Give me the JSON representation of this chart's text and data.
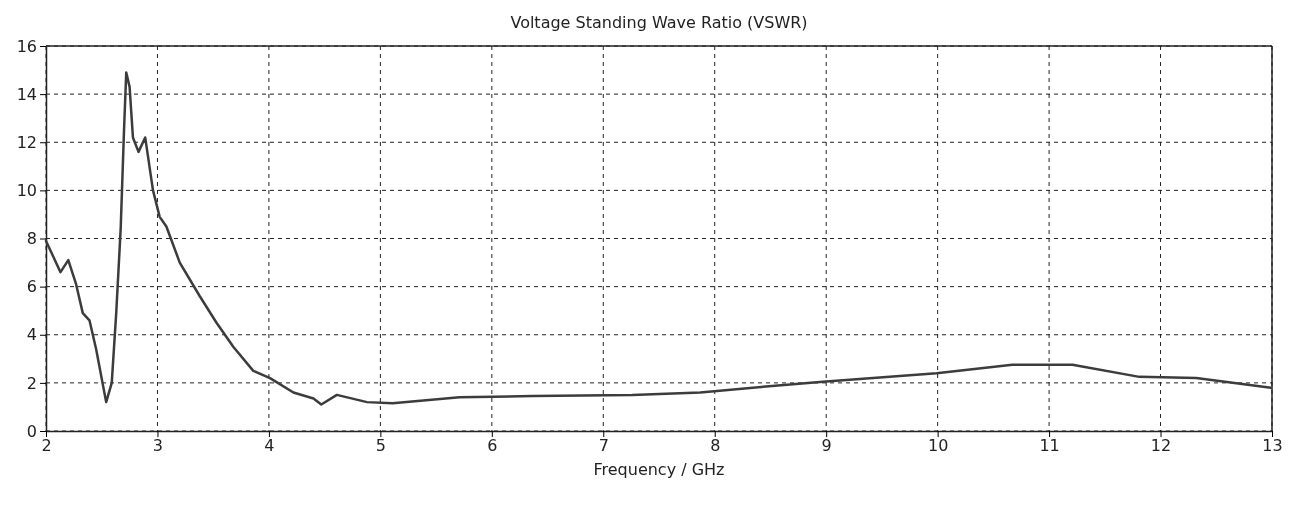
{
  "chart_data": {
    "type": "line",
    "title": "Voltage Standing Wave Ratio (VSWR)",
    "xlabel": "Frequency / GHz",
    "x": [
      2.0,
      2.13,
      2.2,
      2.27,
      2.33,
      2.39,
      2.45,
      2.54,
      2.59,
      2.63,
      2.67,
      2.7,
      2.72,
      2.75,
      2.78,
      2.83,
      2.89,
      2.96,
      3.02,
      3.08,
      3.2,
      3.38,
      3.53,
      3.68,
      3.86,
      4.01,
      4.22,
      4.4,
      4.47,
      4.61,
      4.88,
      5.11,
      5.71,
      6.37,
      7.26,
      7.87,
      8.46,
      8.97,
      9.99,
      10.67,
      11.21,
      11.81,
      12.32,
      12.99
    ],
    "series": [
      {
        "color": "#3c3c3c",
        "values": [
          7.9,
          6.6,
          7.1,
          6.1,
          4.9,
          4.6,
          3.4,
          1.2,
          2.0,
          4.9,
          8.4,
          12.5,
          14.9,
          14.3,
          12.2,
          11.6,
          12.2,
          10.0,
          8.9,
          8.5,
          7.0,
          5.6,
          4.5,
          3.5,
          2.5,
          2.2,
          1.6,
          1.35,
          1.1,
          1.5,
          1.2,
          1.15,
          1.4,
          1.45,
          1.5,
          1.6,
          1.85,
          2.05,
          2.4,
          2.75,
          2.75,
          2.25,
          2.2,
          1.8
        ]
      }
    ],
    "xlim": [
      2,
      13
    ],
    "xticks": [
      2,
      3,
      4,
      5,
      6,
      7,
      8,
      9,
      10,
      11,
      12,
      13
    ],
    "ylim": [
      0,
      16
    ],
    "yticks": [
      0,
      2,
      4,
      6,
      8,
      10,
      12,
      14,
      16
    ],
    "grid": true,
    "line_style": "solid",
    "marker": "none"
  }
}
